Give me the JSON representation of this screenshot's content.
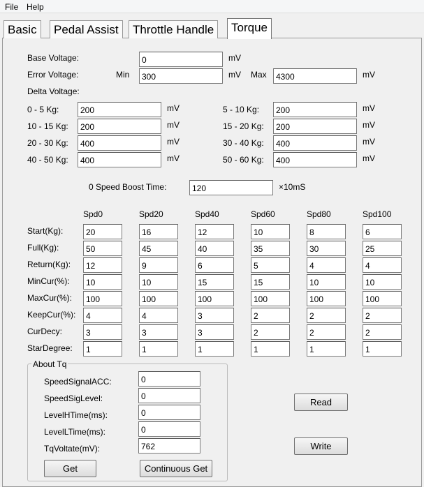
{
  "menu": [
    "File",
    "Help"
  ],
  "tabs": [
    "Basic",
    "Pedal Assist",
    "Throttle Handle",
    "Torque"
  ],
  "base_voltage": {
    "label": "Base Voltage:",
    "value": 0,
    "unit": "mV"
  },
  "error_voltage": {
    "label": "Error Voltage:",
    "min_label": "Min",
    "min": 300,
    "min_unit": "mV",
    "max_label": "Max",
    "max": 4300,
    "max_unit": "mV"
  },
  "delta_voltage": {
    "label": "Delta Voltage:",
    "rows": [
      {
        "label": "0 - 5 Kg:",
        "value": 200,
        "unit": "mV"
      },
      {
        "label": "5 - 10 Kg:",
        "value": 200,
        "unit": "mV"
      },
      {
        "label": "10 - 15 Kg:",
        "value": 200,
        "unit": "mV"
      },
      {
        "label": "15 - 20 Kg:",
        "value": 200,
        "unit": "mV"
      },
      {
        "label": "20 - 30 Kg:",
        "value": 400,
        "unit": "mV"
      },
      {
        "label": "30 - 40 Kg:",
        "value": 400,
        "unit": "mV"
      },
      {
        "label": "40 - 50 Kg:",
        "value": 400,
        "unit": "mV"
      },
      {
        "label": "50 - 60 Kg:",
        "value": 400,
        "unit": "mV"
      }
    ]
  },
  "boost": {
    "label": "0 Speed Boost Time:",
    "value": 120,
    "unit": "×10mS"
  },
  "speed_table": {
    "columns": [
      "Spd0",
      "Spd20",
      "Spd40",
      "Spd60",
      "Spd80",
      "Spd100"
    ],
    "rows": [
      {
        "label": "Start(Kg):",
        "values": [
          20,
          16,
          12,
          10,
          8,
          6
        ]
      },
      {
        "label": "Full(Kg):",
        "values": [
          50,
          45,
          40,
          35,
          30,
          25
        ]
      },
      {
        "label": "Return(Kg):",
        "values": [
          12,
          9,
          6,
          5,
          4,
          4
        ]
      },
      {
        "label": "MinCur(%):",
        "values": [
          10,
          10,
          15,
          15,
          10,
          10
        ]
      },
      {
        "label": "MaxCur(%):",
        "values": [
          100,
          100,
          100,
          100,
          100,
          100
        ]
      },
      {
        "label": "KeepCur(%):",
        "values": [
          4,
          4,
          3,
          2,
          2,
          2
        ]
      },
      {
        "label": "CurDecy:",
        "values": [
          3,
          3,
          3,
          2,
          2,
          2
        ]
      },
      {
        "label": "StarDegree:",
        "values": [
          1,
          1,
          1,
          1,
          1,
          1
        ]
      }
    ]
  },
  "about_tq": {
    "title": "About Tq",
    "fields": [
      {
        "label": "SpeedSignalACC:",
        "value": 0
      },
      {
        "label": "SpeedSigLevel:",
        "value": 0
      },
      {
        "label": "LevelHTime(ms):",
        "value": 0
      },
      {
        "label": "LevelLTime(ms):",
        "value": 0
      },
      {
        "label": "TqVoltate(mV):",
        "value": 762
      }
    ],
    "buttons": [
      "Get",
      "Continuous Get"
    ]
  },
  "buttons": [
    "Read",
    "Write"
  ]
}
